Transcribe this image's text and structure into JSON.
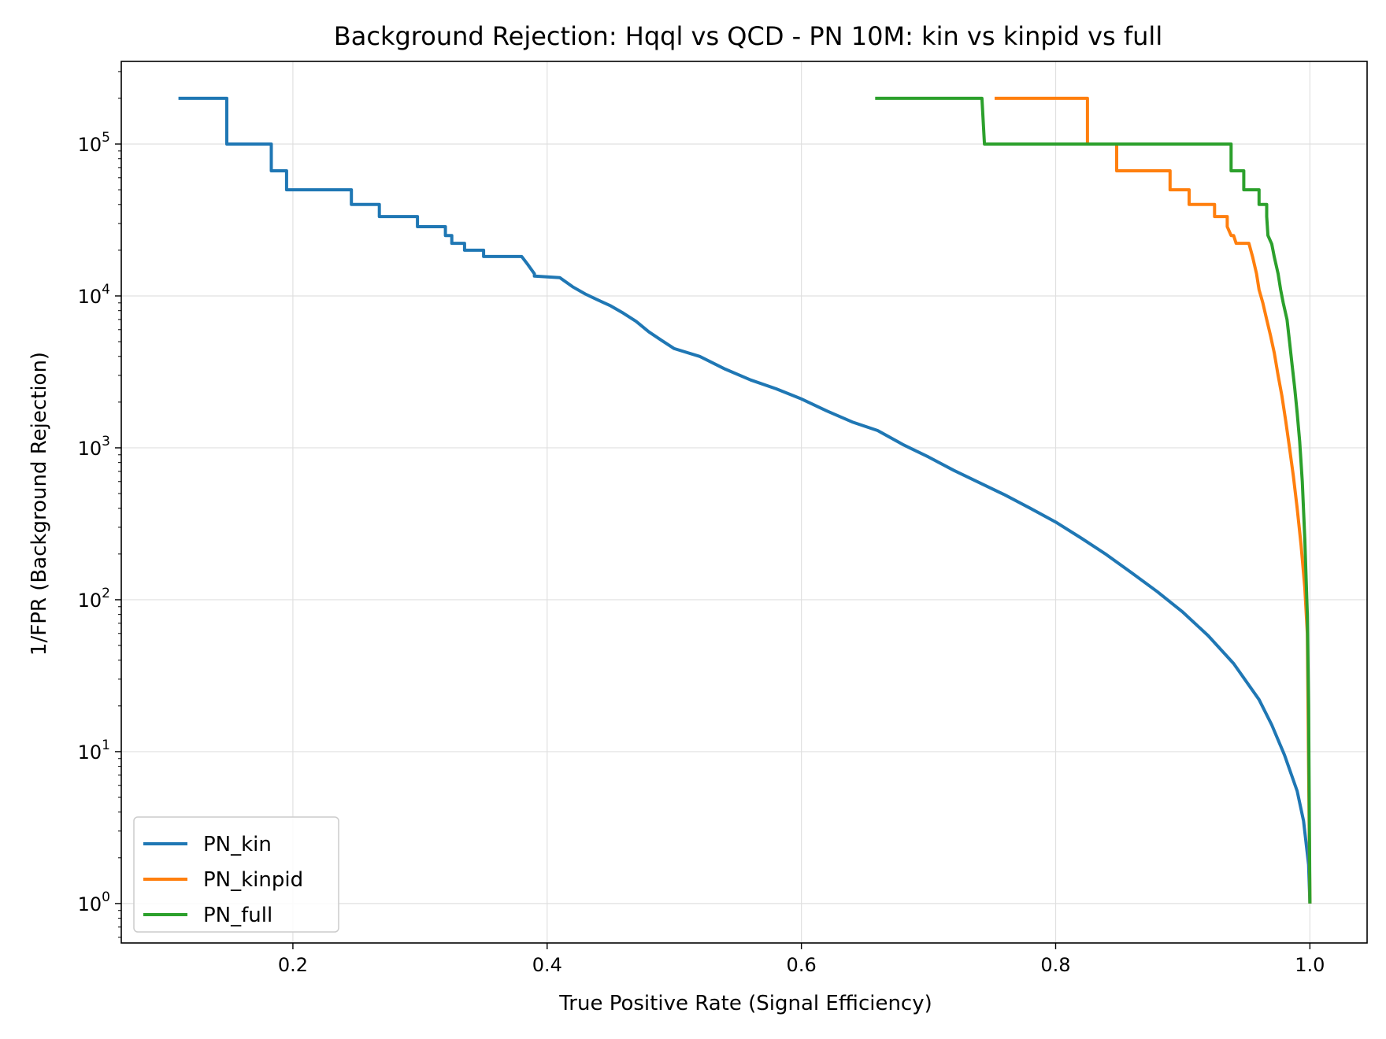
{
  "chart_data": {
    "type": "line",
    "title": "Background Rejection: Hqql vs QCD - PN 10M: kin vs kinpid vs full",
    "xlabel": "True Positive Rate (Signal Efficiency)",
    "ylabel": "1/FPR (Background Rejection)",
    "xlim": [
      0.065,
      1.045
    ],
    "ylim": [
      0.55,
      350000
    ],
    "y_scale": "log",
    "grid": true,
    "legend_position": "lower-left",
    "x_ticks": [
      "0.2",
      "0.4",
      "0.6",
      "0.8",
      "1.0"
    ],
    "x_tick_values": [
      0.2,
      0.4,
      0.6,
      0.8,
      1.0
    ],
    "y_ticks": [
      {
        "base": "10",
        "exp": "0",
        "value": 1
      },
      {
        "base": "10",
        "exp": "1",
        "value": 10
      },
      {
        "base": "10",
        "exp": "2",
        "value": 100
      },
      {
        "base": "10",
        "exp": "3",
        "value": 1000
      },
      {
        "base": "10",
        "exp": "4",
        "value": 10000
      },
      {
        "base": "10",
        "exp": "5",
        "value": 100000
      }
    ],
    "series": [
      {
        "name": "PN_kin",
        "color": "#1f77b4",
        "points": [
          [
            0.11,
            200000
          ],
          [
            0.148,
            200000
          ],
          [
            0.148,
            100000
          ],
          [
            0.183,
            100000
          ],
          [
            0.183,
            66667
          ],
          [
            0.195,
            66667
          ],
          [
            0.195,
            50000
          ],
          [
            0.246,
            50000
          ],
          [
            0.246,
            40000
          ],
          [
            0.268,
            40000
          ],
          [
            0.268,
            33333
          ],
          [
            0.298,
            33333
          ],
          [
            0.298,
            28571
          ],
          [
            0.32,
            28571
          ],
          [
            0.32,
            25000
          ],
          [
            0.325,
            25000
          ],
          [
            0.325,
            22222
          ],
          [
            0.335,
            22222
          ],
          [
            0.335,
            20000
          ],
          [
            0.35,
            20000
          ],
          [
            0.35,
            18182
          ],
          [
            0.38,
            18182
          ],
          [
            0.385,
            16000
          ],
          [
            0.39,
            14000
          ],
          [
            0.39,
            13500
          ],
          [
            0.41,
            13200
          ],
          [
            0.42,
            11500
          ],
          [
            0.43,
            10300
          ],
          [
            0.44,
            9400
          ],
          [
            0.45,
            8600
          ],
          [
            0.46,
            7700
          ],
          [
            0.47,
            6800
          ],
          [
            0.48,
            5800
          ],
          [
            0.49,
            5100
          ],
          [
            0.5,
            4500
          ],
          [
            0.52,
            4000
          ],
          [
            0.54,
            3300
          ],
          [
            0.56,
            2800
          ],
          [
            0.58,
            2450
          ],
          [
            0.6,
            2100
          ],
          [
            0.62,
            1750
          ],
          [
            0.64,
            1480
          ],
          [
            0.66,
            1300
          ],
          [
            0.68,
            1050
          ],
          [
            0.7,
            870
          ],
          [
            0.72,
            710
          ],
          [
            0.74,
            590
          ],
          [
            0.76,
            490
          ],
          [
            0.78,
            400
          ],
          [
            0.8,
            325
          ],
          [
            0.82,
            255
          ],
          [
            0.84,
            198
          ],
          [
            0.86,
            150
          ],
          [
            0.88,
            113
          ],
          [
            0.9,
            83
          ],
          [
            0.92,
            58
          ],
          [
            0.94,
            38
          ],
          [
            0.96,
            22
          ],
          [
            0.97,
            15
          ],
          [
            0.98,
            9.5
          ],
          [
            0.99,
            5.5
          ],
          [
            0.995,
            3.5
          ],
          [
            0.999,
            1.8
          ],
          [
            1.0,
            1.0
          ]
        ]
      },
      {
        "name": "PN_kinpid",
        "color": "#ff7f0e",
        "points": [
          [
            0.752,
            200000
          ],
          [
            0.825,
            200000
          ],
          [
            0.825,
            100000
          ],
          [
            0.848,
            100000
          ],
          [
            0.848,
            66667
          ],
          [
            0.89,
            66667
          ],
          [
            0.89,
            50000
          ],
          [
            0.905,
            50000
          ],
          [
            0.905,
            40000
          ],
          [
            0.925,
            40000
          ],
          [
            0.925,
            33333
          ],
          [
            0.935,
            33333
          ],
          [
            0.935,
            28571
          ],
          [
            0.938,
            25000
          ],
          [
            0.94,
            25000
          ],
          [
            0.942,
            22222
          ],
          [
            0.952,
            22222
          ],
          [
            0.955,
            18000
          ],
          [
            0.958,
            14000
          ],
          [
            0.96,
            11000
          ],
          [
            0.963,
            9000
          ],
          [
            0.966,
            7000
          ],
          [
            0.969,
            5500
          ],
          [
            0.972,
            4200
          ],
          [
            0.975,
            3000
          ],
          [
            0.978,
            2200
          ],
          [
            0.981,
            1500
          ],
          [
            0.984,
            1000
          ],
          [
            0.987,
            650
          ],
          [
            0.99,
            400
          ],
          [
            0.993,
            230
          ],
          [
            0.996,
            120
          ],
          [
            0.998,
            60
          ],
          [
            1.0,
            1.0
          ]
        ]
      },
      {
        "name": "PN_full",
        "color": "#2ca02c",
        "points": [
          [
            0.658,
            200000
          ],
          [
            0.742,
            200000
          ],
          [
            0.744,
            100000
          ],
          [
            0.938,
            100000
          ],
          [
            0.938,
            66667
          ],
          [
            0.948,
            66667
          ],
          [
            0.948,
            50000
          ],
          [
            0.96,
            50000
          ],
          [
            0.96,
            40000
          ],
          [
            0.966,
            40000
          ],
          [
            0.966,
            33333
          ],
          [
            0.967,
            25000
          ],
          [
            0.97,
            22000
          ],
          [
            0.972,
            18000
          ],
          [
            0.975,
            14000
          ],
          [
            0.977,
            11000
          ],
          [
            0.979,
            9000
          ],
          [
            0.982,
            7000
          ],
          [
            0.984,
            5000
          ],
          [
            0.986,
            3500
          ],
          [
            0.988,
            2500
          ],
          [
            0.99,
            1700
          ],
          [
            0.992,
            1100
          ],
          [
            0.994,
            600
          ],
          [
            0.996,
            250
          ],
          [
            0.998,
            80
          ],
          [
            0.999,
            20
          ],
          [
            1.0,
            1.0
          ]
        ]
      }
    ]
  }
}
